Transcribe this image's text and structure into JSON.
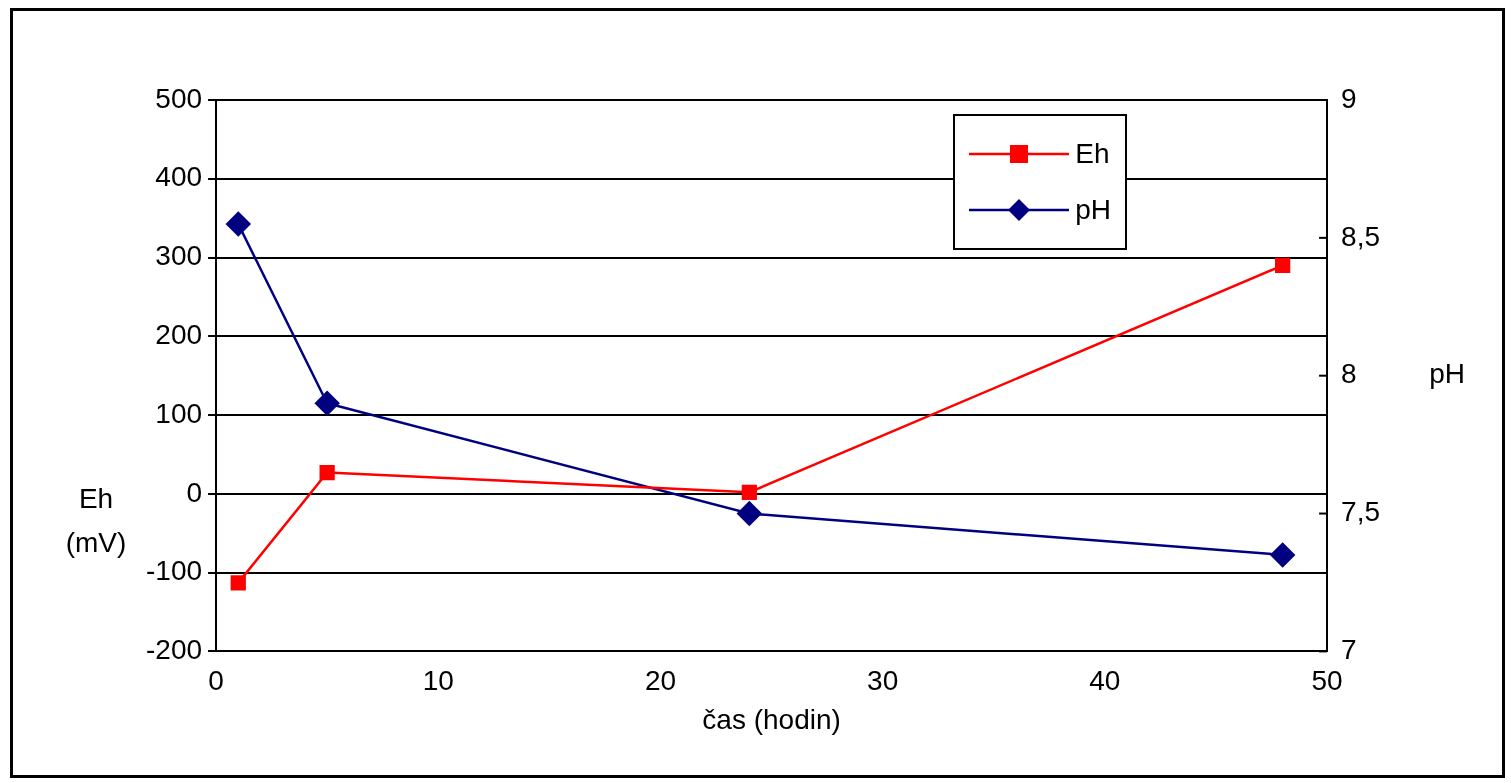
{
  "chart_data": {
    "type": "line",
    "xlabel": "čas (hodin)",
    "ylabel": "Eh (mV)",
    "y2label": "pH",
    "xlim": [
      0,
      50
    ],
    "xticks": [
      0,
      10,
      20,
      30,
      40,
      50
    ],
    "ylim": [
      -200,
      500
    ],
    "yticks": [
      -200,
      -100,
      0,
      100,
      200,
      300,
      400,
      500
    ],
    "y2lim": [
      7,
      9
    ],
    "y2ticks": [
      7,
      {
        "value": 7.5,
        "label": "7,5"
      },
      8,
      {
        "value": 8.5,
        "label": "8,5"
      },
      9
    ],
    "grid": "y",
    "legend": "top right",
    "line_style": "solid",
    "series": [
      {
        "name": "Eh",
        "color": "#ff0000",
        "marker": "square",
        "x": [
          1,
          5,
          24,
          48
        ],
        "values": [
          -113,
          27,
          2,
          290
        ]
      },
      {
        "name": "pH",
        "color": "#000080",
        "marker": "diamond",
        "axis": "y2",
        "x": [
          1,
          5,
          24,
          48
        ],
        "values": [
          8.55,
          7.9,
          7.5,
          7.35
        ]
      }
    ]
  }
}
